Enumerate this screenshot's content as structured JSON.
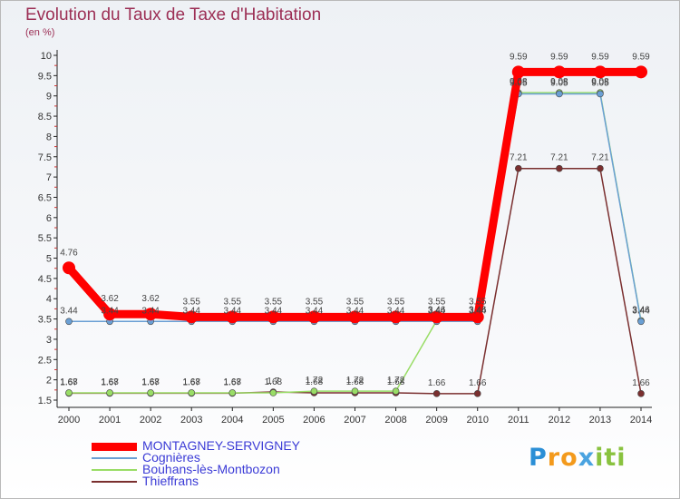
{
  "title": "Evolution du Taux de Taxe d'Habitation",
  "unit": "(en %)",
  "brand": [
    "P",
    "r",
    "o",
    "x",
    "i",
    "ti"
  ],
  "chart_data": {
    "type": "line",
    "x": [
      "2000",
      "2001",
      "2002",
      "2003",
      "2004",
      "2005",
      "2006",
      "2007",
      "2008",
      "2009",
      "2010",
      "2011",
      "2012",
      "2013",
      "2014"
    ],
    "ylim": [
      1.5,
      10
    ],
    "yticks": [
      "1.5",
      "2",
      "2.5",
      "3",
      "3.5",
      "4",
      "4.5",
      "5",
      "5.5",
      "6",
      "6.5",
      "7",
      "7.5",
      "8",
      "8.5",
      "9",
      "9.5",
      "10"
    ],
    "grid": false,
    "legend_position": "bottom-left",
    "series": [
      {
        "name": "MONTAGNEY-SERVIGNEY",
        "color": "#ff0000",
        "values": [
          4.76,
          3.62,
          3.62,
          3.55,
          3.55,
          3.55,
          3.55,
          3.55,
          3.55,
          3.55,
          3.55,
          9.59,
          9.59,
          9.59,
          9.59
        ],
        "labels": [
          "4.76",
          "3.62",
          "3.62",
          "3.55",
          "3.55",
          "3.55",
          "3.55",
          "3.55",
          "3.55",
          "3.55",
          "3.55",
          "9.59",
          "9.59",
          "9.59",
          "9.59"
        ]
      },
      {
        "name": "Cognières",
        "color": "#6a9fd4",
        "values": [
          3.44,
          3.44,
          3.44,
          3.44,
          3.44,
          3.44,
          3.44,
          3.44,
          3.44,
          3.44,
          3.44,
          9.05,
          9.05,
          9.05,
          3.44
        ],
        "labels": [
          "3.44",
          "3.44",
          "3.44",
          "3.44",
          "3.44",
          "3.44",
          "3.44",
          "3.44",
          "3.44",
          "3.44",
          "3.44",
          "9.05",
          "9.05",
          "9.05",
          "3.44"
        ]
      },
      {
        "name": "Bouhans-lès-Montbozon",
        "color": "#99dd66",
        "values": [
          1.68,
          1.68,
          1.68,
          1.68,
          1.68,
          1.68,
          1.72,
          1.72,
          1.72,
          3.46,
          3.46,
          9.08,
          9.08,
          9.08,
          3.46
        ],
        "labels": [
          "1.68",
          "1.68",
          "1.68",
          "1.68",
          "1.68",
          "1.68",
          "1.72",
          "1.72",
          "1.72",
          "3.46",
          "3.46",
          "9.08",
          "9.08",
          "9.08",
          "3.46"
        ]
      },
      {
        "name": "Thieffrans",
        "color": "#7a2f2f",
        "values": [
          1.67,
          1.67,
          1.67,
          1.67,
          1.67,
          1.7,
          1.68,
          1.68,
          1.68,
          1.66,
          1.66,
          7.21,
          7.21,
          7.21,
          1.66
        ],
        "labels": [
          "1.67",
          "1.67",
          "1.67",
          "1.67",
          "1.67",
          "1.7",
          "1.68",
          "1.68",
          "1.68",
          "1.66",
          "1.66",
          "7.21",
          "7.21",
          "7.21",
          "1.66"
        ]
      }
    ]
  }
}
